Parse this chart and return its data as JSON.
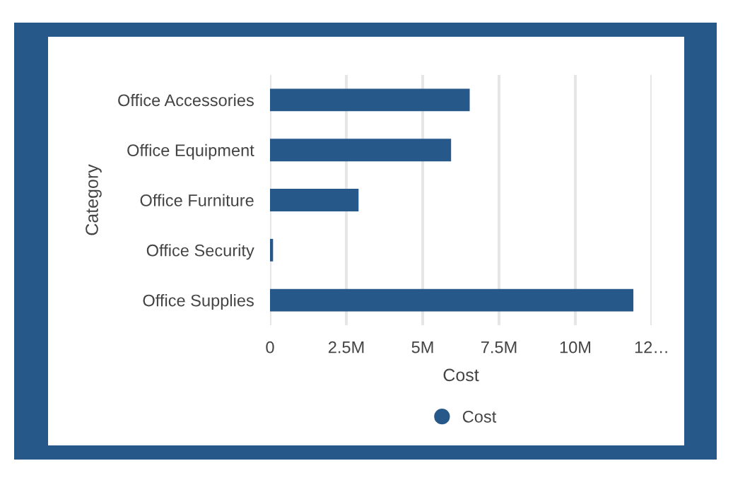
{
  "chart_data": {
    "type": "bar",
    "orientation": "horizontal",
    "xlabel": "Cost",
    "ylabel": "Category",
    "categories": [
      "Office Accessories",
      "Office Equipment",
      "Office Furniture",
      "Office Security",
      "Office Supplies"
    ],
    "series": [
      {
        "name": "Cost",
        "color": "#26598a",
        "values": [
          6540000,
          5930000,
          2900000,
          100000,
          11900000
        ]
      }
    ],
    "xlim": [
      0,
      12500000
    ],
    "xticks": [
      0,
      {
        "value": 2500000,
        "label": "2.5M"
      },
      {
        "value": 5000000,
        "label": "5M"
      },
      {
        "value": 7500000,
        "label": "7.5M"
      },
      {
        "value": 10000000,
        "label": "10M"
      },
      {
        "value": 12500000,
        "label": "12…"
      }
    ],
    "grid": "x",
    "legend": "bottom"
  }
}
